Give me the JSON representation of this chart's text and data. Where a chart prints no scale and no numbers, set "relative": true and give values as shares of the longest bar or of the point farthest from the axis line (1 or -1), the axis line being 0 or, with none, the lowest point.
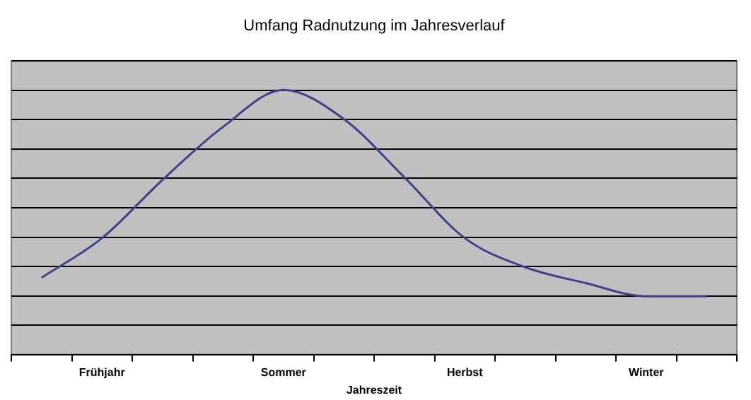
{
  "chart_data": {
    "type": "line",
    "title": "Umfang Radnutzung im Jahresverlauf",
    "xlabel": "Jahreszeit",
    "relative": true,
    "grid": "y",
    "legend": false,
    "marker": "none",
    "categories": [
      null,
      "Frühjahr",
      null,
      null,
      "Sommer",
      null,
      null,
      "Herbst",
      null,
      null,
      "Winter",
      null
    ],
    "series": [
      {
        "color": "#40408c",
        "values": [
          0.29,
          0.44,
          0.66,
          0.86,
          1.0,
          0.89,
          0.67,
          0.44,
          0.33,
          0.27,
          0.22,
          0.22
        ]
      }
    ]
  }
}
